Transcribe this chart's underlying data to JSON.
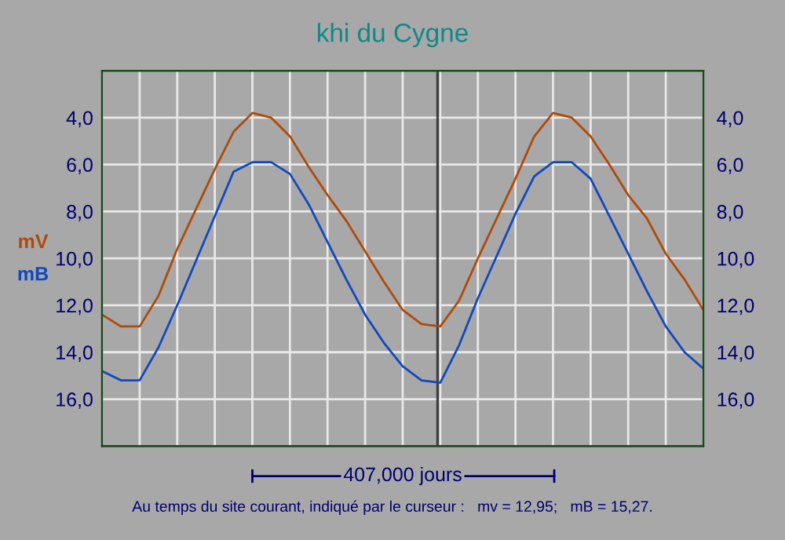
{
  "chart_data": {
    "type": "line",
    "title": "khi du Cygne",
    "categories": [
      null,
      null,
      null,
      null,
      null,
      null,
      null,
      null,
      null,
      null,
      null,
      null,
      null,
      null,
      null,
      null,
      null,
      null,
      null,
      null,
      null,
      null,
      null,
      null,
      null,
      null,
      null,
      null,
      null,
      null,
      null,
      null,
      null
    ],
    "ylim": [
      18,
      2
    ],
    "yticks": [
      {
        "value": 4,
        "label": "4,0"
      },
      {
        "value": 6,
        "label": "6,0"
      },
      {
        "value": 8,
        "label": "8,0"
      },
      {
        "value": 10,
        "label": "10,0"
      },
      {
        "value": 12,
        "label": "12,0"
      },
      {
        "value": 14,
        "label": "14,0"
      },
      {
        "value": 16,
        "label": "16,0"
      }
    ],
    "y2lim": [
      18,
      2
    ],
    "y2ticks": [
      {
        "value": 4,
        "label": "4,0"
      },
      {
        "value": 6,
        "label": "6,0"
      },
      {
        "value": 8,
        "label": "8,0"
      },
      {
        "value": 10,
        "label": "10,0"
      },
      {
        "value": 12,
        "label": "12,0"
      },
      {
        "value": 14,
        "label": "14,0"
      },
      {
        "value": 16,
        "label": "16,0"
      }
    ],
    "grid": true,
    "marker": "none",
    "line_style": "solid",
    "series": [
      {
        "name": "mV",
        "color": "#b04a08",
        "values": [
          12.4,
          12.9,
          12.9,
          11.6,
          9.6,
          7.9,
          6.2,
          4.6,
          3.8,
          4.0,
          4.8,
          6.1,
          7.3,
          8.4,
          9.7,
          11.0,
          12.2,
          12.8,
          12.9,
          11.8,
          10.0,
          8.3,
          6.6,
          4.8,
          3.8,
          4.0,
          4.8,
          6.0,
          7.3,
          8.3,
          9.8,
          10.9,
          12.2
        ]
      },
      {
        "name": "mB",
        "color": "#1048c0",
        "values": [
          14.8,
          15.2,
          15.2,
          13.8,
          12.0,
          10.1,
          8.2,
          6.3,
          5.9,
          5.9,
          6.4,
          7.7,
          9.3,
          10.9,
          12.4,
          13.6,
          14.6,
          15.2,
          15.3,
          13.7,
          11.7,
          9.9,
          8.1,
          6.5,
          5.9,
          5.9,
          6.6,
          8.2,
          9.8,
          11.4,
          12.9,
          14.0,
          14.7
        ]
      }
    ],
    "annotations": [
      "407,000 jours",
      "Au temps du site courant, indiqué par le curseur :   mv = 12,95;   mB = 15,27."
    ]
  }
}
